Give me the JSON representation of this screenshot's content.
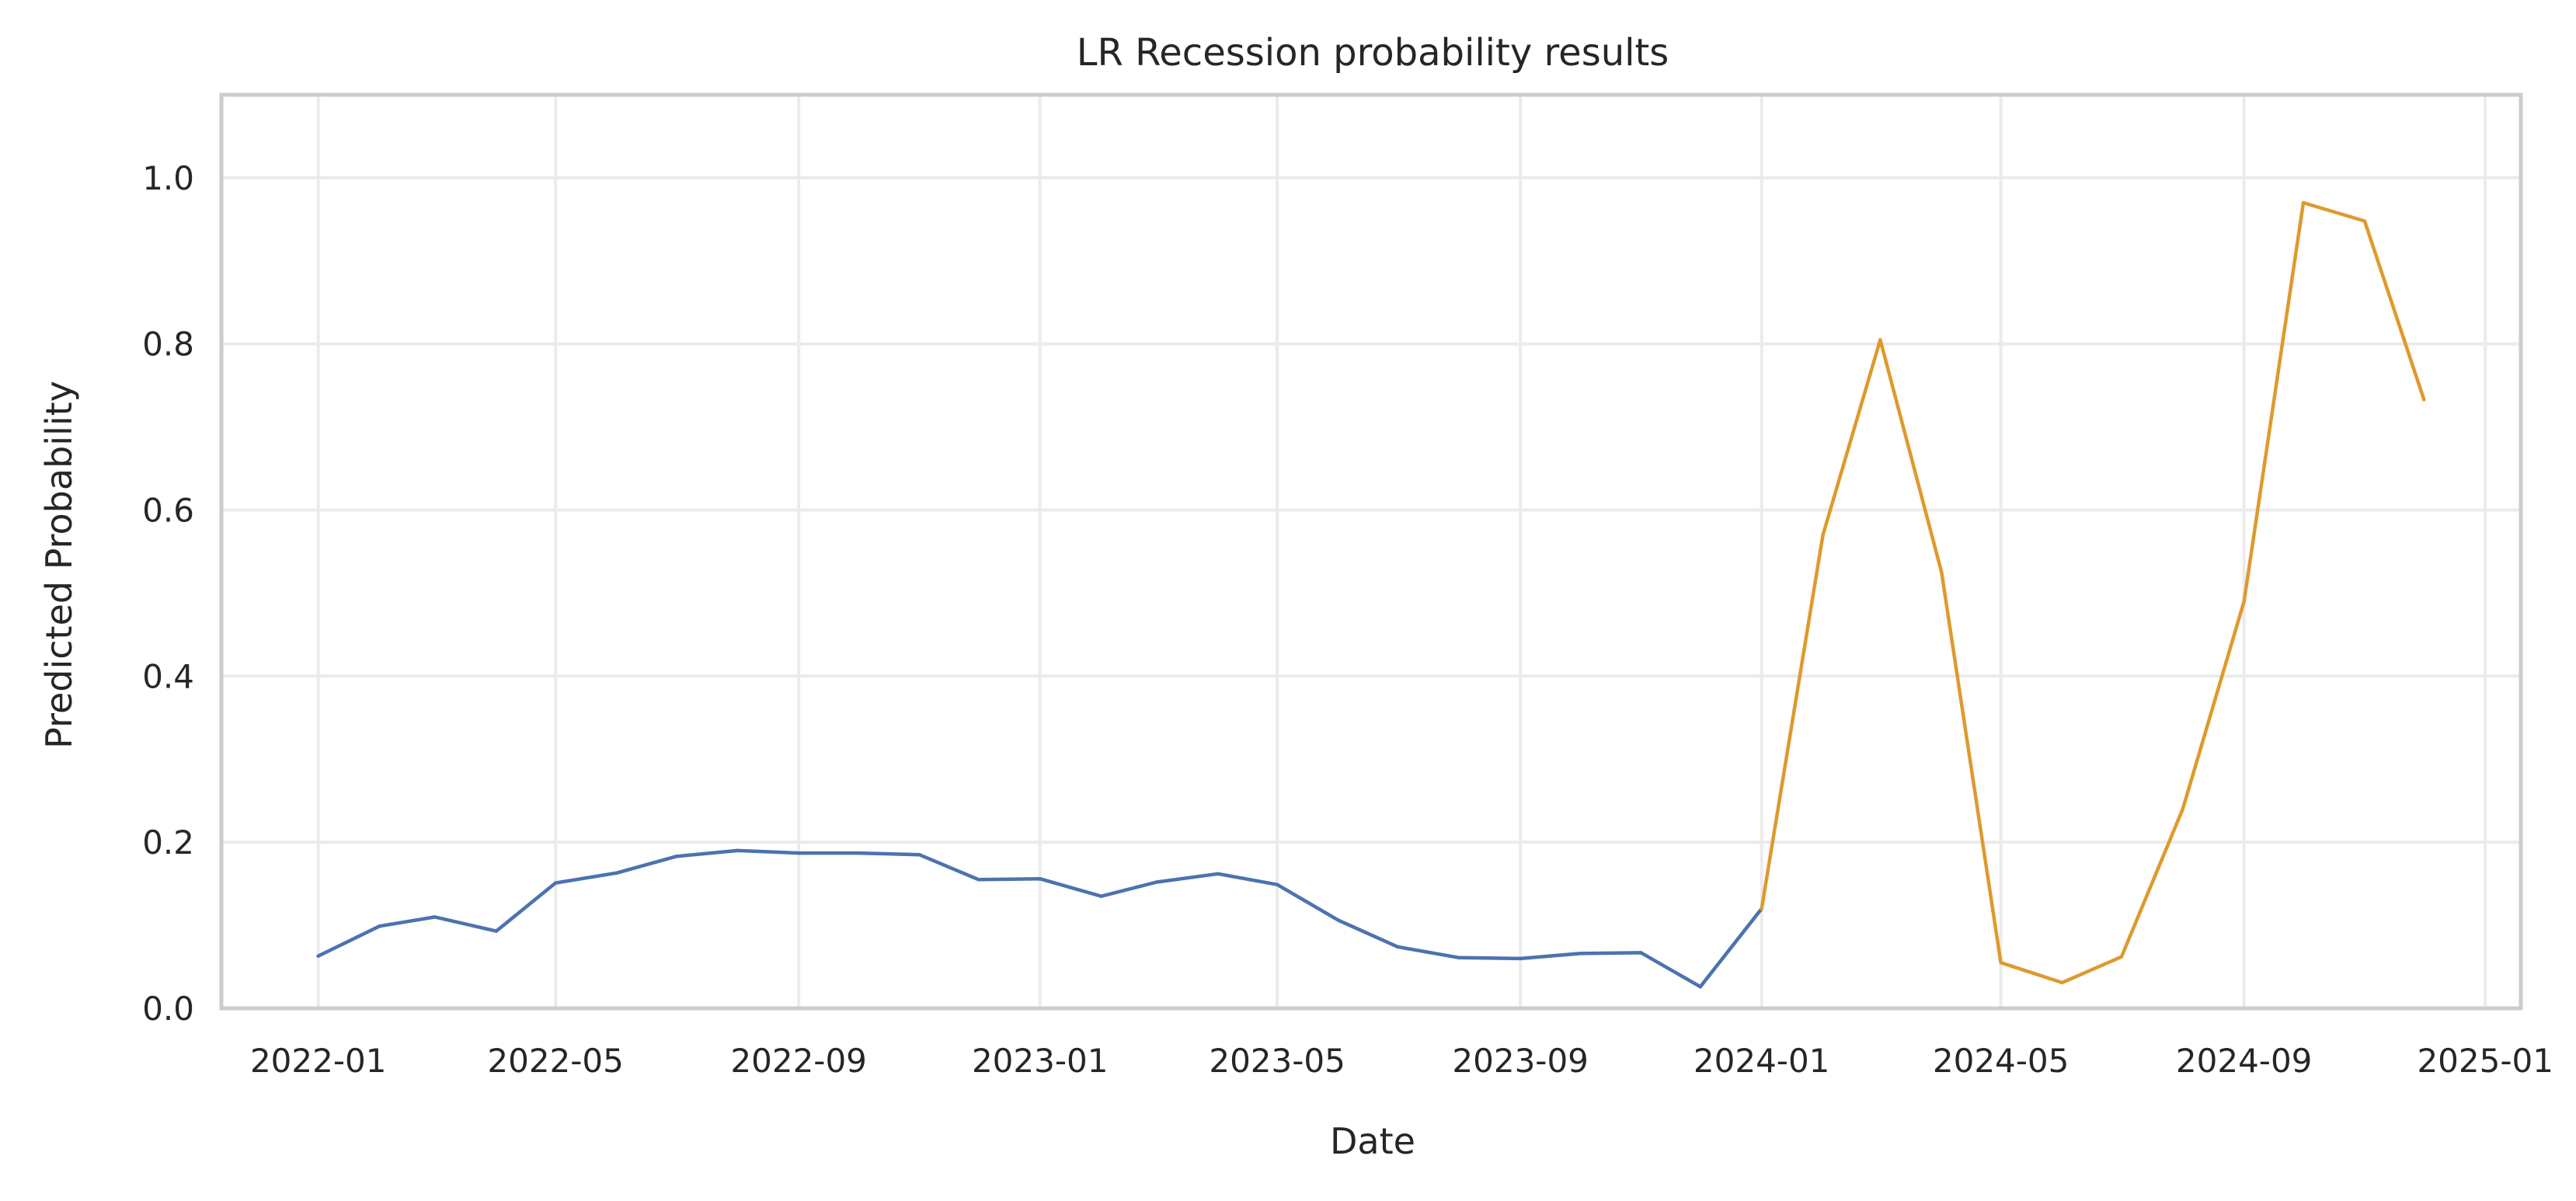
{
  "chart_data": {
    "type": "line",
    "title": "LR Recession probability results",
    "xlabel": "Date",
    "ylabel": "Predicted Probability",
    "xlim": [
      "2021-11-13",
      "2025-01-19"
    ],
    "ylim": [
      0.0,
      1.1
    ],
    "grid": true,
    "x_ticks": [
      "2022-01",
      "2022-05",
      "2022-09",
      "2023-01",
      "2023-05",
      "2023-09",
      "2024-01",
      "2024-05",
      "2024-09",
      "2025-01"
    ],
    "y_ticks": [
      "0.0",
      "0.2",
      "0.4",
      "0.6",
      "0.8",
      "1.0"
    ],
    "series": [
      {
        "color": "#4c72b0",
        "points": [
          {
            "x": "2022-01-01",
            "y": 0.063
          },
          {
            "x": "2022-02-01",
            "y": 0.099
          },
          {
            "x": "2022-03-01",
            "y": 0.11
          },
          {
            "x": "2022-04-01",
            "y": 0.093
          },
          {
            "x": "2022-05-01",
            "y": 0.151
          },
          {
            "x": "2022-06-01",
            "y": 0.163
          },
          {
            "x": "2022-07-01",
            "y": 0.183
          },
          {
            "x": "2022-08-01",
            "y": 0.19
          },
          {
            "x": "2022-09-01",
            "y": 0.187
          },
          {
            "x": "2022-10-01",
            "y": 0.187
          },
          {
            "x": "2022-11-01",
            "y": 0.185
          },
          {
            "x": "2022-12-01",
            "y": 0.155
          },
          {
            "x": "2023-01-01",
            "y": 0.156
          },
          {
            "x": "2023-02-01",
            "y": 0.135
          },
          {
            "x": "2023-03-01",
            "y": 0.152
          },
          {
            "x": "2023-04-01",
            "y": 0.162
          },
          {
            "x": "2023-05-01",
            "y": 0.149
          },
          {
            "x": "2023-06-01",
            "y": 0.106
          },
          {
            "x": "2023-07-01",
            "y": 0.074
          },
          {
            "x": "2023-08-01",
            "y": 0.061
          },
          {
            "x": "2023-09-01",
            "y": 0.06
          },
          {
            "x": "2023-10-01",
            "y": 0.066
          },
          {
            "x": "2023-11-01",
            "y": 0.067
          },
          {
            "x": "2023-12-01",
            "y": 0.026
          },
          {
            "x": "2024-01-01",
            "y": 0.12
          }
        ]
      },
      {
        "color": "#dd9a2d",
        "points": [
          {
            "x": "2024-01-01",
            "y": 0.12
          },
          {
            "x": "2024-02-01",
            "y": 0.57
          },
          {
            "x": "2024-03-01",
            "y": 0.805
          },
          {
            "x": "2024-04-01",
            "y": 0.525
          },
          {
            "x": "2024-05-01",
            "y": 0.055
          },
          {
            "x": "2024-06-01",
            "y": 0.031
          },
          {
            "x": "2024-07-01",
            "y": 0.062
          },
          {
            "x": "2024-08-01",
            "y": 0.24
          },
          {
            "x": "2024-09-01",
            "y": 0.49
          },
          {
            "x": "2024-10-01",
            "y": 0.97
          },
          {
            "x": "2024-11-01",
            "y": 0.948
          },
          {
            "x": "2024-12-01",
            "y": 0.733
          }
        ]
      }
    ]
  }
}
